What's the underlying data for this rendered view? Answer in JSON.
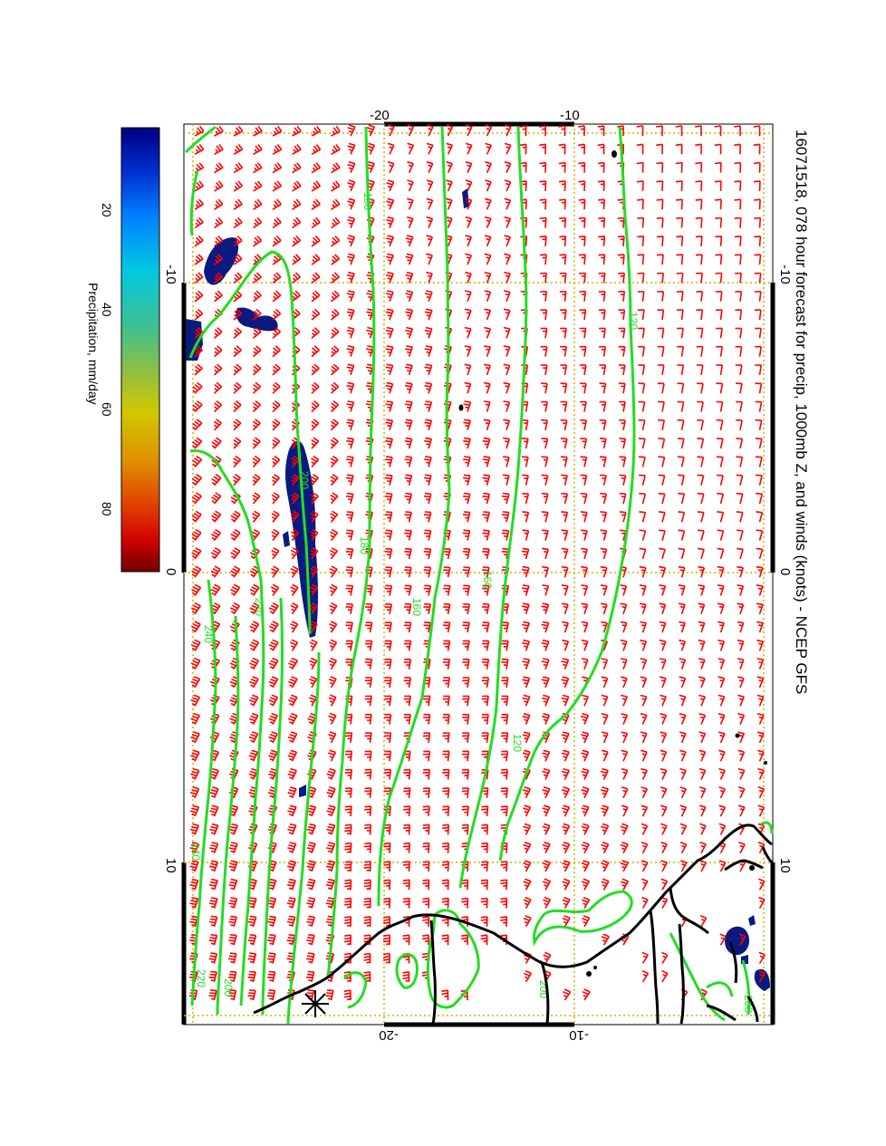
{
  "title": "16071518, 078 hour forecast for precip, 1000mb Z, and winds (knots) - NCEP GFS",
  "colorbar": {
    "label": "Precipitation, mm/day",
    "ticks": [
      "20",
      "40",
      "60",
      "80"
    ],
    "colors": [
      "#000080",
      "#0020c0",
      "#0060ff",
      "#00a0ff",
      "#00d0d0",
      "#40c080",
      "#80c040",
      "#c0c000",
      "#e0a000",
      "#e06000",
      "#d02000",
      "#800000"
    ]
  },
  "axes": {
    "longitude_ticks": [
      "-10",
      "0",
      "10"
    ],
    "latitude_ticks_top": [
      "-20",
      "-10"
    ],
    "latitude_ticks_bottom": [
      "-20",
      "-10"
    ]
  },
  "contours": {
    "color": "#22dd22",
    "labels": [
      "120",
      "120",
      "160",
      "160",
      "180",
      "180",
      "200",
      "220",
      "240",
      "240",
      "200",
      "220",
      "200",
      "200"
    ]
  },
  "colors": {
    "wind_barbs": "#ff0000",
    "precip": "#0a1a80",
    "coastline": "#000000",
    "grid": "#d4b000",
    "contour": "#22dd22"
  },
  "icons": [
    "asterisk-marker-icon"
  ]
}
